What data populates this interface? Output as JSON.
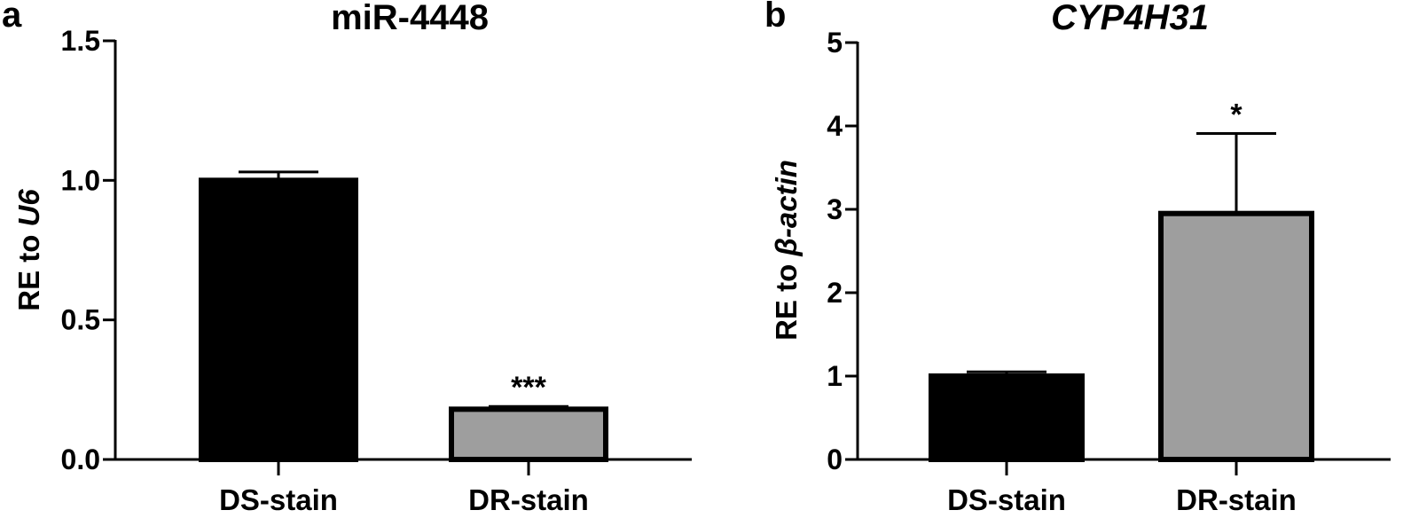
{
  "chart_data": [
    {
      "type": "bar",
      "panel_label": "a",
      "title": "miR-4448",
      "title_italic": false,
      "ylabel_prefix": "RE to ",
      "ylabel_gene": "U6",
      "categories": [
        "DS-stain",
        "DR-stain"
      ],
      "values": [
        1.0,
        0.18
      ],
      "errors": [
        0.03,
        0.01
      ],
      "significance": [
        "",
        "***"
      ],
      "colors": [
        "#000000",
        "#9e9e9e"
      ],
      "ylim": [
        0,
        1.5
      ],
      "yticks": [
        0.0,
        0.5,
        1.0,
        1.5
      ],
      "ytick_labels": [
        "0.0",
        "0.5",
        "1.0",
        "1.5"
      ],
      "grid": false,
      "legend": "none"
    },
    {
      "type": "bar",
      "panel_label": "b",
      "title": "CYP4H31",
      "title_italic": true,
      "ylabel_prefix": "RE to ",
      "ylabel_gene": "β-actin",
      "categories": [
        "DS-stain",
        "DR-stain"
      ],
      "values": [
        1.0,
        2.95
      ],
      "errors": [
        0.05,
        0.96
      ],
      "significance": [
        "",
        "*"
      ],
      "colors": [
        "#000000",
        "#9e9e9e"
      ],
      "ylim": [
        0,
        5
      ],
      "yticks": [
        0,
        1,
        2,
        3,
        4,
        5
      ],
      "ytick_labels": [
        "0",
        "1",
        "2",
        "3",
        "4",
        "5"
      ],
      "grid": false,
      "legend": "none"
    }
  ]
}
